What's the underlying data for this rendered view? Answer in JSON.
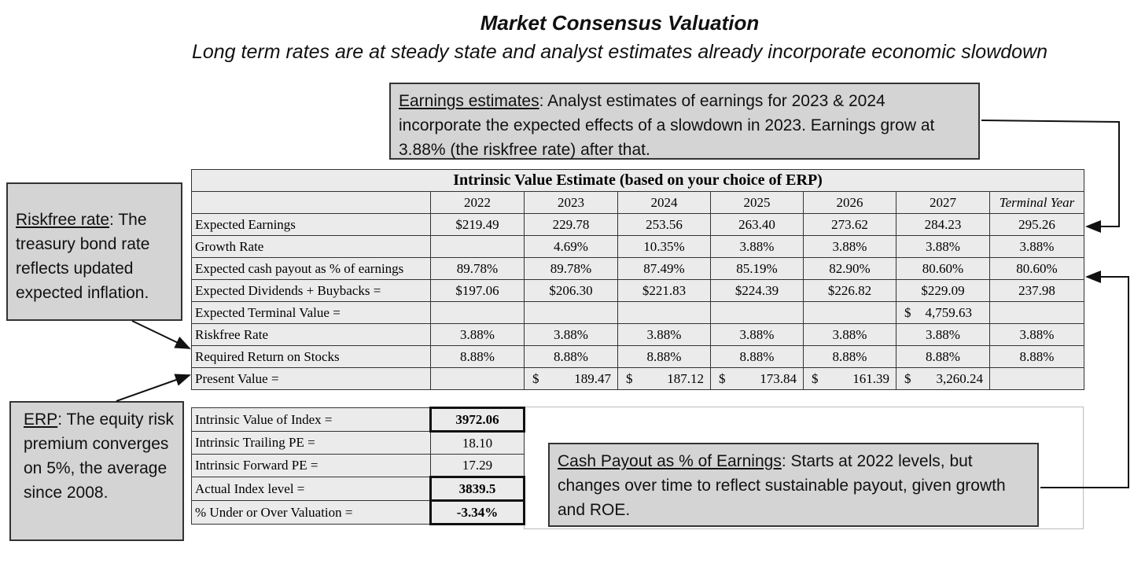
{
  "title": "Market Consensus Valuation",
  "subtitle": "Long term rates are at steady state and analyst estimates already incorporate economic slowdown",
  "callouts": [
    {
      "heading": "Earnings estimates",
      "text": ": Analyst estimates of earnings for 2023 & 2024 incorporate the expected effects of a slowdown in 2023. Earnings grow at 3.88% (the riskfree rate) after that."
    },
    {
      "heading": "Riskfree rate",
      "text": ": The treasury bond rate reflects updated expected inflation."
    },
    {
      "heading": "ERP",
      "text": ": The equity risk premium converges on 5%, the average since 2008."
    },
    {
      "heading": "Cash Payout as % of Earnings",
      "text": ": Starts at 2022 levels, but changes over time to reflect sustainable payout, given growth and ROE."
    }
  ],
  "table": {
    "title": "Intrinsic Value Estimate (based on your choice of ERP)",
    "columns": [
      "2022",
      "2023",
      "2024",
      "2025",
      "2026",
      "2027",
      "Terminal Year"
    ],
    "rows": [
      {
        "label": "Expected Earnings",
        "cells": [
          "$219.49",
          "229.78",
          "253.56",
          "263.40",
          "273.62",
          "284.23",
          "295.26"
        ]
      },
      {
        "label": "Growth Rate",
        "cells": [
          null,
          "4.69%",
          "10.35%",
          "3.88%",
          "3.88%",
          "3.88%",
          "3.88%"
        ]
      },
      {
        "label": "Expected cash payout as % of earnings",
        "cells": [
          "89.78%",
          "89.78%",
          "87.49%",
          "85.19%",
          "82.90%",
          "80.60%",
          "80.60%"
        ]
      },
      {
        "label": "Expected Dividends + Buybacks =",
        "cells": [
          "$197.06",
          "$206.30",
          "$221.83",
          "$224.39",
          "$226.82",
          "$229.09",
          "237.98"
        ]
      },
      {
        "label": "Expected Terminal Value =",
        "cells": [
          null,
          null,
          null,
          null,
          null,
          [
            "$",
            "4,759.63"
          ],
          null
        ]
      },
      {
        "label": "Riskfree Rate",
        "cells": [
          "3.88%",
          "3.88%",
          "3.88%",
          "3.88%",
          "3.88%",
          "3.88%",
          "3.88%"
        ]
      },
      {
        "label": "Required Return on Stocks",
        "cells": [
          "8.88%",
          "8.88%",
          "8.88%",
          "8.88%",
          "8.88%",
          "8.88%",
          "8.88%"
        ]
      },
      {
        "label": "Present Value =",
        "cells": [
          null,
          [
            "$",
            "189.47"
          ],
          [
            "$",
            "187.12"
          ],
          [
            "$",
            "173.84"
          ],
          [
            "$",
            "161.39"
          ],
          [
            "$",
            "3,260.24"
          ],
          null
        ]
      }
    ],
    "summary": [
      {
        "label": "Intrinsic Value of Index =",
        "value": "3972.06",
        "emphasis": true
      },
      {
        "label": "Intrinsic Trailing PE =",
        "value": "18.10",
        "emphasis": false
      },
      {
        "label": "Intrinsic Forward PE =",
        "value": "17.29",
        "emphasis": false
      },
      {
        "label": "Actual Index level =",
        "value": "3839.5",
        "emphasis": true
      },
      {
        "label": "% Under or Over Valuation =",
        "value": "-3.34%",
        "emphasis": true
      }
    ]
  }
}
